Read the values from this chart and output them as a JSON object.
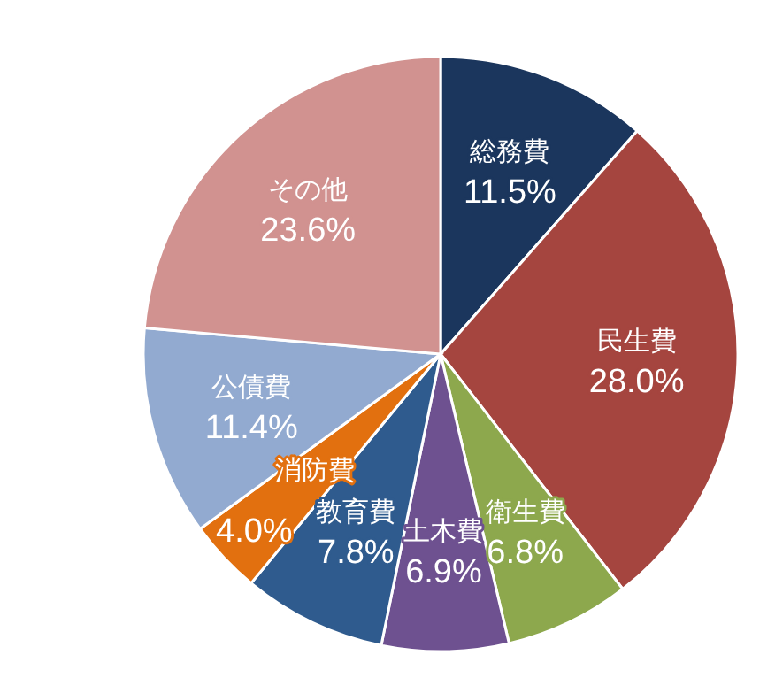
{
  "chart_data": {
    "type": "pie",
    "categories": [
      "総務費",
      "民生費",
      "衛生費",
      "土木費",
      "教育費",
      "消防費",
      "公債費",
      "その他"
    ],
    "values": [
      11.5,
      28.0,
      6.8,
      6.9,
      7.8,
      4.0,
      11.4,
      23.6
    ],
    "colors": [
      "#1b365d",
      "#a5453f",
      "#8da84d",
      "#6e5190",
      "#2f5b8e",
      "#e2700f",
      "#92aad0",
      "#d19290"
    ],
    "value_labels": [
      "11.5%",
      "28.0%",
      "6.8%",
      "6.9%",
      "7.8%",
      "4.0%",
      "11.4%",
      "23.6%"
    ],
    "legend": false
  }
}
